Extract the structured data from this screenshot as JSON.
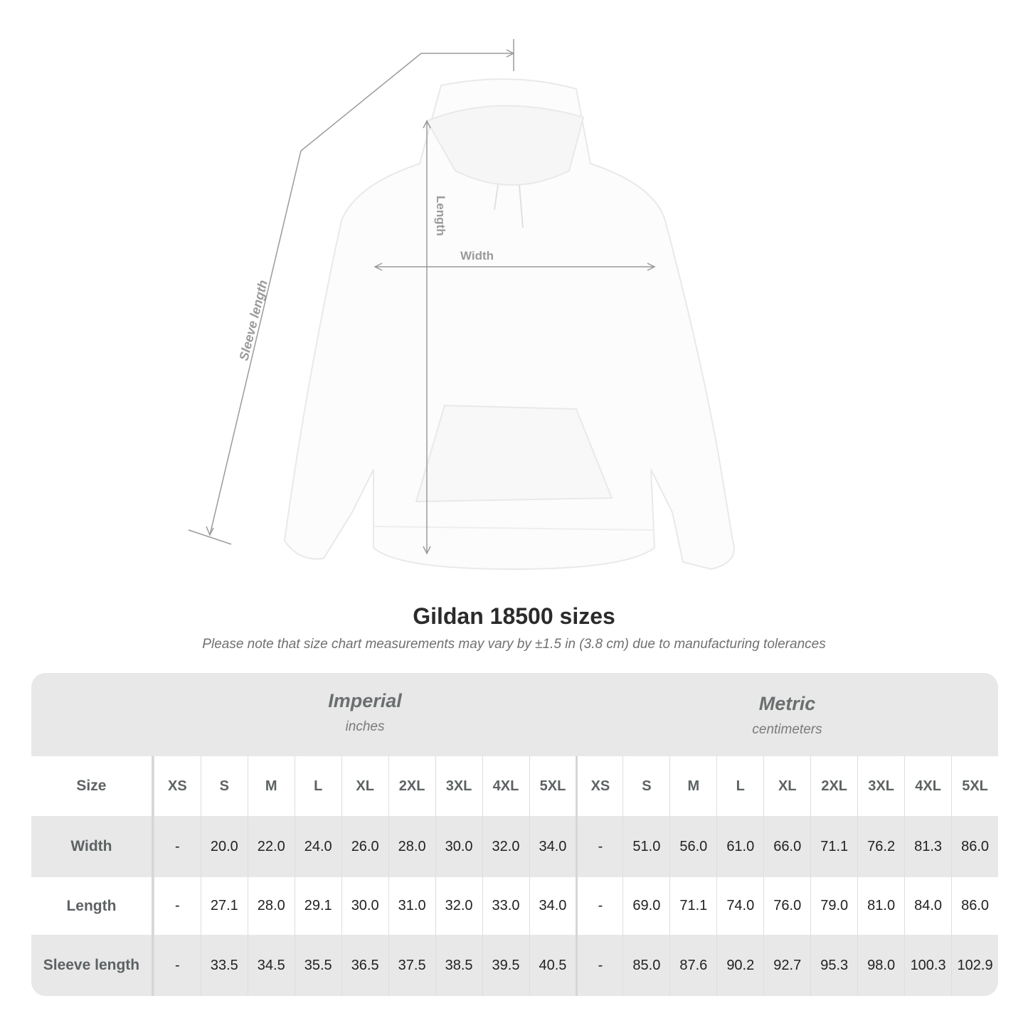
{
  "diagram": {
    "labels": {
      "sleeve": "Sleeve length",
      "length": "Length",
      "width": "Width"
    },
    "line_color": "#9a9a9a",
    "garment_color": "#ffffff"
  },
  "title": "Gildan 18500 sizes",
  "subtitle": "Please note that size chart measurements may vary by ±1.5 in (3.8 cm) due to manufacturing tolerances",
  "table": {
    "imperial": {
      "label": "Imperial",
      "unit": "inches"
    },
    "metric": {
      "label": "Metric",
      "unit": "centimeters"
    },
    "size_label": "Size",
    "sizes": [
      "XS",
      "S",
      "M",
      "L",
      "XL",
      "2XL",
      "3XL",
      "4XL",
      "5XL"
    ],
    "rows": [
      {
        "label": "Width",
        "imperial": [
          "-",
          "20.0",
          "22.0",
          "24.0",
          "26.0",
          "28.0",
          "30.0",
          "32.0",
          "34.0"
        ],
        "metric": [
          "-",
          "51.0",
          "56.0",
          "61.0",
          "66.0",
          "71.1",
          "76.2",
          "81.3",
          "86.0"
        ]
      },
      {
        "label": "Length",
        "imperial": [
          "-",
          "27.1",
          "28.0",
          "29.1",
          "30.0",
          "31.0",
          "32.0",
          "33.0",
          "34.0"
        ],
        "metric": [
          "-",
          "69.0",
          "71.1",
          "74.0",
          "76.0",
          "79.0",
          "81.0",
          "84.0",
          "86.0"
        ]
      },
      {
        "label": "Sleeve length",
        "imperial": [
          "-",
          "33.5",
          "34.5",
          "35.5",
          "36.5",
          "37.5",
          "38.5",
          "39.5",
          "40.5"
        ],
        "metric": [
          "-",
          "85.0",
          "87.6",
          "90.2",
          "92.7",
          "95.3",
          "98.0",
          "100.3",
          "102.9"
        ]
      }
    ]
  }
}
